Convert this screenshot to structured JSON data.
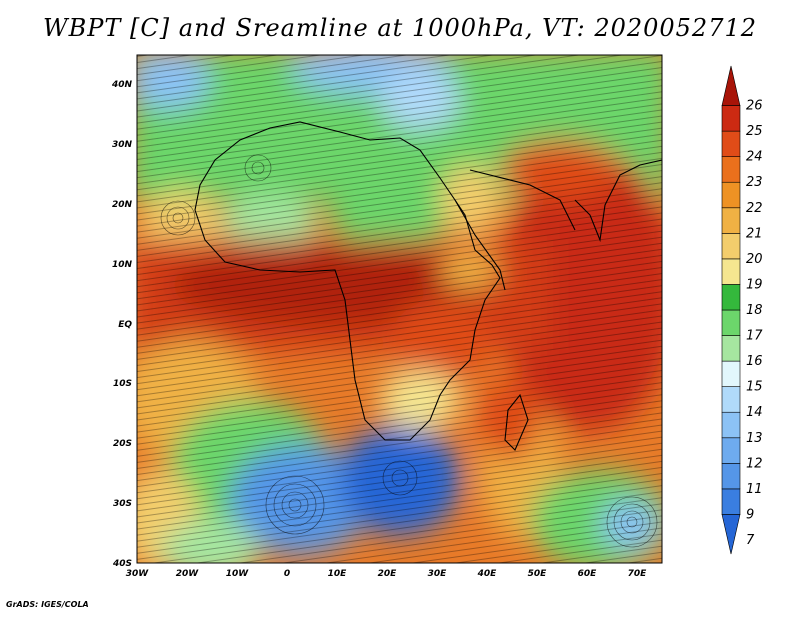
{
  "title": "WBPT [C] and Sreamline at 1000hPa, VT: 2020052712",
  "credit": "GrADS: IGES/COLA",
  "map": {
    "lat_labels": [
      "40N",
      "30N",
      "20N",
      "10N",
      "EQ",
      "10S",
      "20S",
      "30S",
      "40S"
    ],
    "lon_labels": [
      "30W",
      "20W",
      "10W",
      "0",
      "10E",
      "20E",
      "30E",
      "40E",
      "50E",
      "60E",
      "70E"
    ]
  },
  "colorbar": {
    "levels": [
      "7",
      "9",
      "11",
      "12",
      "13",
      "14",
      "15",
      "16",
      "17",
      "18",
      "19",
      "20",
      "21",
      "22",
      "23",
      "24",
      "25",
      "26"
    ],
    "colors": [
      "#2566d6",
      "#3a7ee0",
      "#5596e8",
      "#6eabef",
      "#8cc2f5",
      "#b0dafa",
      "#e2f7fc",
      "#a6e6a0",
      "#6cd66b",
      "#34b83c",
      "#f5e690",
      "#f3cd6c",
      "#f0b144",
      "#ee9224",
      "#ea701c",
      "#e04c18",
      "#cc2a12",
      "#a81408"
    ]
  },
  "features": {
    "colors": {
      "land_hot": "#d43c18",
      "ocean_hot": "#c92a12",
      "cold_south": "#4a88e0",
      "green": "#5cc95c"
    }
  }
}
